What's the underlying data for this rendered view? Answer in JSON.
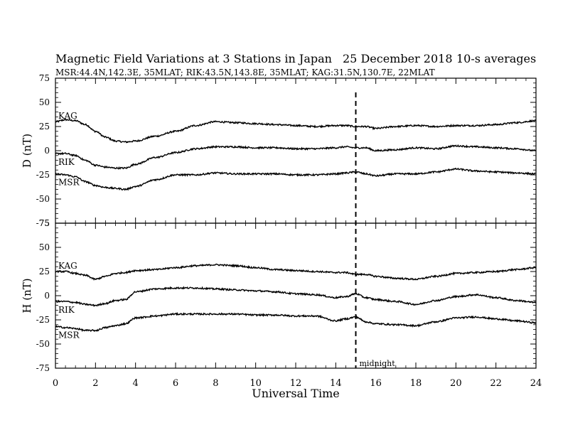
{
  "header": {
    "title": "Magnetic Field Variations at 3 Stations in Japan",
    "date": "25 December 2018",
    "averages": "10-s averages",
    "stations": "MSR:44.4N,142.3E, 35MLAT;  RIK:43.5N,143.8E, 35MLAT;  KAG:31.5N,130.7E, 22MLAT"
  },
  "chart_data": {
    "type": "line",
    "xlabel": "Universal Time",
    "xlim": [
      0,
      24
    ],
    "xticks": [
      0,
      2,
      4,
      6,
      8,
      10,
      12,
      14,
      16,
      18,
      20,
      22,
      24
    ],
    "annotations": [
      {
        "x": 15,
        "label": "midnight",
        "style": "dashed-vertical"
      }
    ],
    "panels": [
      {
        "ylabel": "D (nT)",
        "ylim": [
          -75,
          75
        ],
        "yticks": [
          75,
          50,
          25,
          0,
          -25,
          -50,
          -75
        ],
        "series": [
          {
            "name": "KAG",
            "x": [
              0,
              0.5,
              1,
              1.5,
              2,
              2.5,
              3,
              3.5,
              4,
              5,
              6,
              7,
              8,
              9,
              10,
              11,
              12,
              13,
              14,
              14.5,
              15,
              15.5,
              16,
              17,
              18,
              19,
              20,
              21,
              22,
              23,
              24
            ],
            "y": [
              30,
              32,
              31,
              27,
              20,
              14,
              10,
              9,
              10,
              15,
              20,
              26,
              30,
              29,
              28,
              27,
              26,
              25,
              26,
              26,
              25,
              25,
              23,
              25,
              26,
              25,
              26,
              26,
              27,
              29,
              31
            ]
          },
          {
            "name": "RIK",
            "x": [
              0,
              0.5,
              1,
              1.5,
              2,
              2.5,
              3,
              3.5,
              4,
              5,
              6,
              7,
              8,
              9,
              10,
              11,
              12,
              13,
              14,
              14.5,
              15,
              15.5,
              16,
              17,
              18,
              19,
              20,
              21,
              22,
              23,
              24
            ],
            "y": [
              -3,
              -3,
              -5,
              -10,
              -15,
              -17,
              -18,
              -18,
              -14,
              -7,
              -2,
              2,
              4,
              4,
              3,
              3,
              2,
              2,
              3,
              4,
              3,
              3,
              0,
              1,
              3,
              2,
              5,
              4,
              3,
              2,
              0
            ]
          },
          {
            "name": "MSR",
            "x": [
              0,
              0.5,
              1,
              1.5,
              2,
              2.5,
              3,
              3.5,
              4,
              5,
              6,
              7,
              8,
              9,
              10,
              11,
              12,
              13,
              14,
              14.5,
              15,
              15.5,
              16,
              17,
              18,
              19,
              20,
              21,
              22,
              23,
              24
            ],
            "y": [
              -24,
              -25,
              -27,
              -32,
              -36,
              -38,
              -39,
              -40,
              -37,
              -30,
              -25,
              -25,
              -23,
              -24,
              -24,
              -24,
              -25,
              -25,
              -24,
              -23,
              -22,
              -24,
              -26,
              -24,
              -24,
              -22,
              -19,
              -21,
              -22,
              -23,
              -24
            ]
          }
        ]
      },
      {
        "ylabel": "H (nT)",
        "ylim": [
          -75,
          75
        ],
        "yticks": [
          75,
          50,
          25,
          0,
          -25,
          -50,
          -75
        ],
        "series": [
          {
            "name": "KAG",
            "x": [
              0,
              0.5,
              1,
              1.5,
              2,
              2.5,
              3,
              3.5,
              4,
              5,
              6,
              7,
              8,
              9,
              10,
              11,
              12,
              13,
              14,
              14.5,
              15,
              15.5,
              16,
              17,
              18,
              19,
              20,
              21,
              22,
              23,
              24
            ],
            "y": [
              25,
              25,
              23,
              21,
              17,
              20,
              23,
              24,
              26,
              27,
              29,
              31,
              32,
              31,
              29,
              27,
              26,
              25,
              24,
              24,
              22,
              22,
              20,
              18,
              17,
              20,
              23,
              24,
              25,
              27,
              29
            ]
          },
          {
            "name": "RIK",
            "x": [
              0,
              0.5,
              1,
              1.5,
              2,
              2.5,
              3,
              3.5,
              4,
              5,
              6,
              7,
              8,
              9,
              10,
              11,
              12,
              13,
              14,
              14.5,
              15,
              15.5,
              16,
              17,
              18,
              19,
              20,
              21,
              22,
              23,
              24
            ],
            "y": [
              -6,
              -6,
              -7,
              -9,
              -10,
              -8,
              -5,
              -4,
              4,
              7,
              8,
              8,
              7,
              6,
              5,
              4,
              2,
              1,
              -2,
              -1,
              2,
              -2,
              -4,
              -6,
              -9,
              -5,
              -1,
              1,
              -2,
              -5,
              -7
            ]
          },
          {
            "name": "MSR",
            "x": [
              0,
              0.5,
              1,
              1.5,
              2,
              2.5,
              3,
              3.5,
              4,
              5,
              6,
              7,
              8,
              9,
              10,
              11,
              12,
              13,
              14,
              14.5,
              15,
              15.5,
              16,
              17,
              18,
              19,
              20,
              21,
              22,
              23,
              24
            ],
            "y": [
              -32,
              -33,
              -34,
              -36,
              -36,
              -33,
              -31,
              -29,
              -23,
              -21,
              -19,
              -19,
              -19,
              -19,
              -20,
              -20,
              -21,
              -21,
              -26,
              -24,
              -22,
              -27,
              -29,
              -30,
              -31,
              -27,
              -23,
              -22,
              -24,
              -26,
              -28
            ]
          }
        ]
      }
    ]
  }
}
